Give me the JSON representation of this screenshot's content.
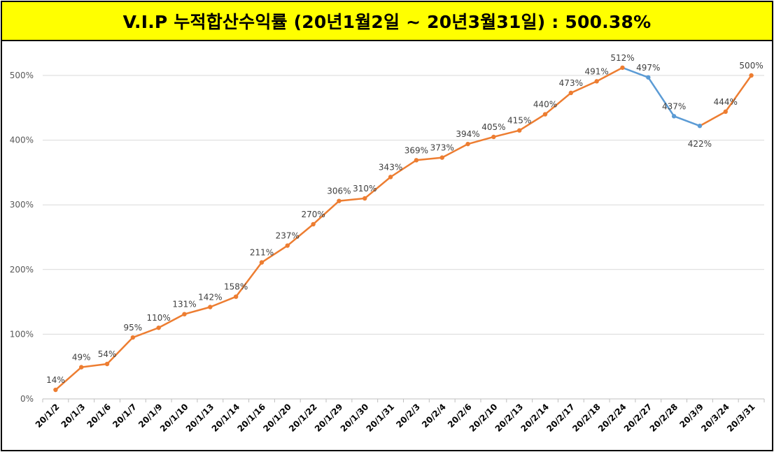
{
  "title": "V.I.P 누적합산수익률 (20년1월2일 ~ 20년3월31일) : 500.38%",
  "colors": {
    "title_bg": "#ffff00",
    "line_up": "#ed7d31",
    "line_down": "#5b9bd5",
    "grid": "#d9d9d9"
  },
  "chart_data": {
    "type": "line",
    "categories": [
      "20/1/2",
      "20/1/3",
      "20/1/6",
      "20/1/7",
      "20/1/9",
      "20/1/10",
      "20/1/13",
      "20/1/14",
      "20/1/16",
      "20/1/20",
      "20/1/22",
      "20/1/29",
      "20/1/30",
      "20/1/31",
      "20/2/3",
      "20/2/4",
      "20/2/6",
      "20/2/10",
      "20/2/13",
      "20/2/14",
      "20/2/17",
      "20/2/18",
      "20/2/24",
      "20/2/27",
      "20/2/28",
      "20/3/9",
      "20/3/24",
      "20/3/31"
    ],
    "values": [
      14,
      49,
      54,
      95,
      110,
      131,
      142,
      158,
      211,
      237,
      270,
      306,
      310,
      343,
      369,
      373,
      394,
      405,
      415,
      440,
      473,
      491,
      512,
      497,
      437,
      422,
      444,
      500
    ],
    "data_labels": [
      "14%",
      "49%",
      "54%",
      "95%",
      "110%",
      "131%",
      "142%",
      "158%",
      "211%",
      "237%",
      "270%",
      "306%",
      "310%",
      "343%",
      "369%",
      "373%",
      "394%",
      "405%",
      "415%",
      "440%",
      "473%",
      "491%",
      "512%",
      "497%",
      "437%",
      "422%",
      "444%",
      "500%"
    ],
    "y_ticks": [
      0,
      100,
      200,
      300,
      400,
      500
    ],
    "y_tick_labels": [
      "0%",
      "100%",
      "200%",
      "300%",
      "400%",
      "500%"
    ],
    "ylim": [
      0,
      540
    ],
    "grid": true,
    "legend": "none",
    "down_segment_color_note": "segments where value decreases drawn in blue"
  }
}
